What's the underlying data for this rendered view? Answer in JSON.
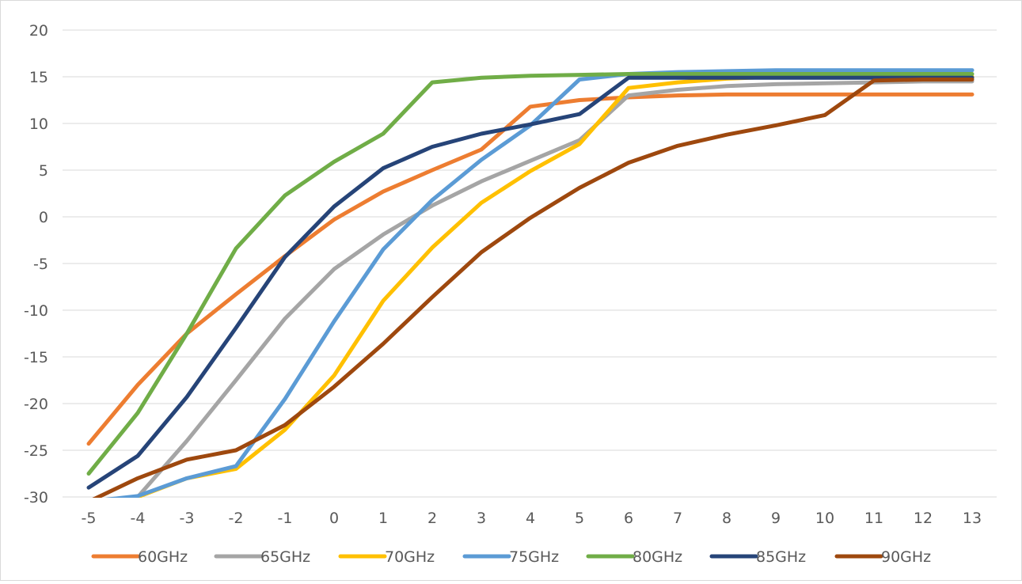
{
  "chart_data": {
    "type": "line",
    "title": "",
    "xlabel": "",
    "ylabel": "",
    "x": [
      -5,
      -4,
      -3,
      -2,
      -1,
      0,
      1,
      2,
      3,
      4,
      5,
      6,
      7,
      8,
      9,
      10,
      11,
      12,
      13
    ],
    "ylim": [
      -30,
      20
    ],
    "yticks": [
      20,
      15,
      10,
      5,
      0,
      -5,
      -10,
      -15,
      -20,
      -25,
      -30
    ],
    "grid": "horizontal",
    "legend_position": "bottom",
    "series": [
      {
        "name": "60GHz",
        "color": "#ED7D31",
        "values": [
          -24.3,
          -18.0,
          -12.5,
          -8.3,
          -4.2,
          -0.3,
          2.7,
          5.0,
          7.2,
          11.8,
          12.5,
          12.8,
          13.0,
          13.1,
          13.1,
          13.1,
          13.1,
          13.1,
          13.1
        ]
      },
      {
        "name": "65GHz",
        "color": "#A5A5A5",
        "values": [
          -30.5,
          -30.0,
          -24.0,
          -17.5,
          -10.9,
          -5.6,
          -1.9,
          1.2,
          3.8,
          6.0,
          8.2,
          13.0,
          13.6,
          14.0,
          14.2,
          14.3,
          14.4,
          14.5,
          14.5
        ]
      },
      {
        "name": "70GHz",
        "color": "#FFC000",
        "values": [
          -30.5,
          -30.0,
          -28.0,
          -27.0,
          -22.8,
          -17.0,
          -9.0,
          -3.3,
          1.5,
          4.9,
          7.8,
          13.8,
          14.4,
          14.8,
          15.0,
          15.0,
          15.0,
          15.0,
          15.0
        ]
      },
      {
        "name": "75GHz",
        "color": "#5B9BD5",
        "values": [
          -30.5,
          -29.9,
          -28.0,
          -26.7,
          -19.5,
          -11.2,
          -3.5,
          1.8,
          6.1,
          9.8,
          14.7,
          15.3,
          15.5,
          15.6,
          15.7,
          15.7,
          15.7,
          15.7,
          15.7
        ]
      },
      {
        "name": "80GHz",
        "color": "#70AD47",
        "values": [
          -27.5,
          -21.0,
          -12.5,
          -3.4,
          2.3,
          5.9,
          8.9,
          14.4,
          14.9,
          15.1,
          15.2,
          15.3,
          15.3,
          15.3,
          15.3,
          15.3,
          15.3,
          15.3,
          15.3
        ]
      },
      {
        "name": "85GHz",
        "color": "#264478",
        "values": [
          -29.0,
          -25.6,
          -19.3,
          -11.9,
          -4.3,
          1.1,
          5.2,
          7.5,
          8.9,
          9.9,
          11.0,
          14.9,
          14.9,
          14.9,
          14.9,
          14.9,
          14.9,
          14.9,
          14.9
        ]
      },
      {
        "name": "90GHz",
        "color": "#9E480E",
        "values": [
          -30.5,
          -28.0,
          -26.0,
          -25.0,
          -22.3,
          -18.2,
          -13.6,
          -8.6,
          -3.8,
          -0.1,
          3.1,
          5.8,
          7.6,
          8.8,
          9.8,
          10.9,
          14.6,
          14.7,
          14.7
        ]
      }
    ]
  }
}
